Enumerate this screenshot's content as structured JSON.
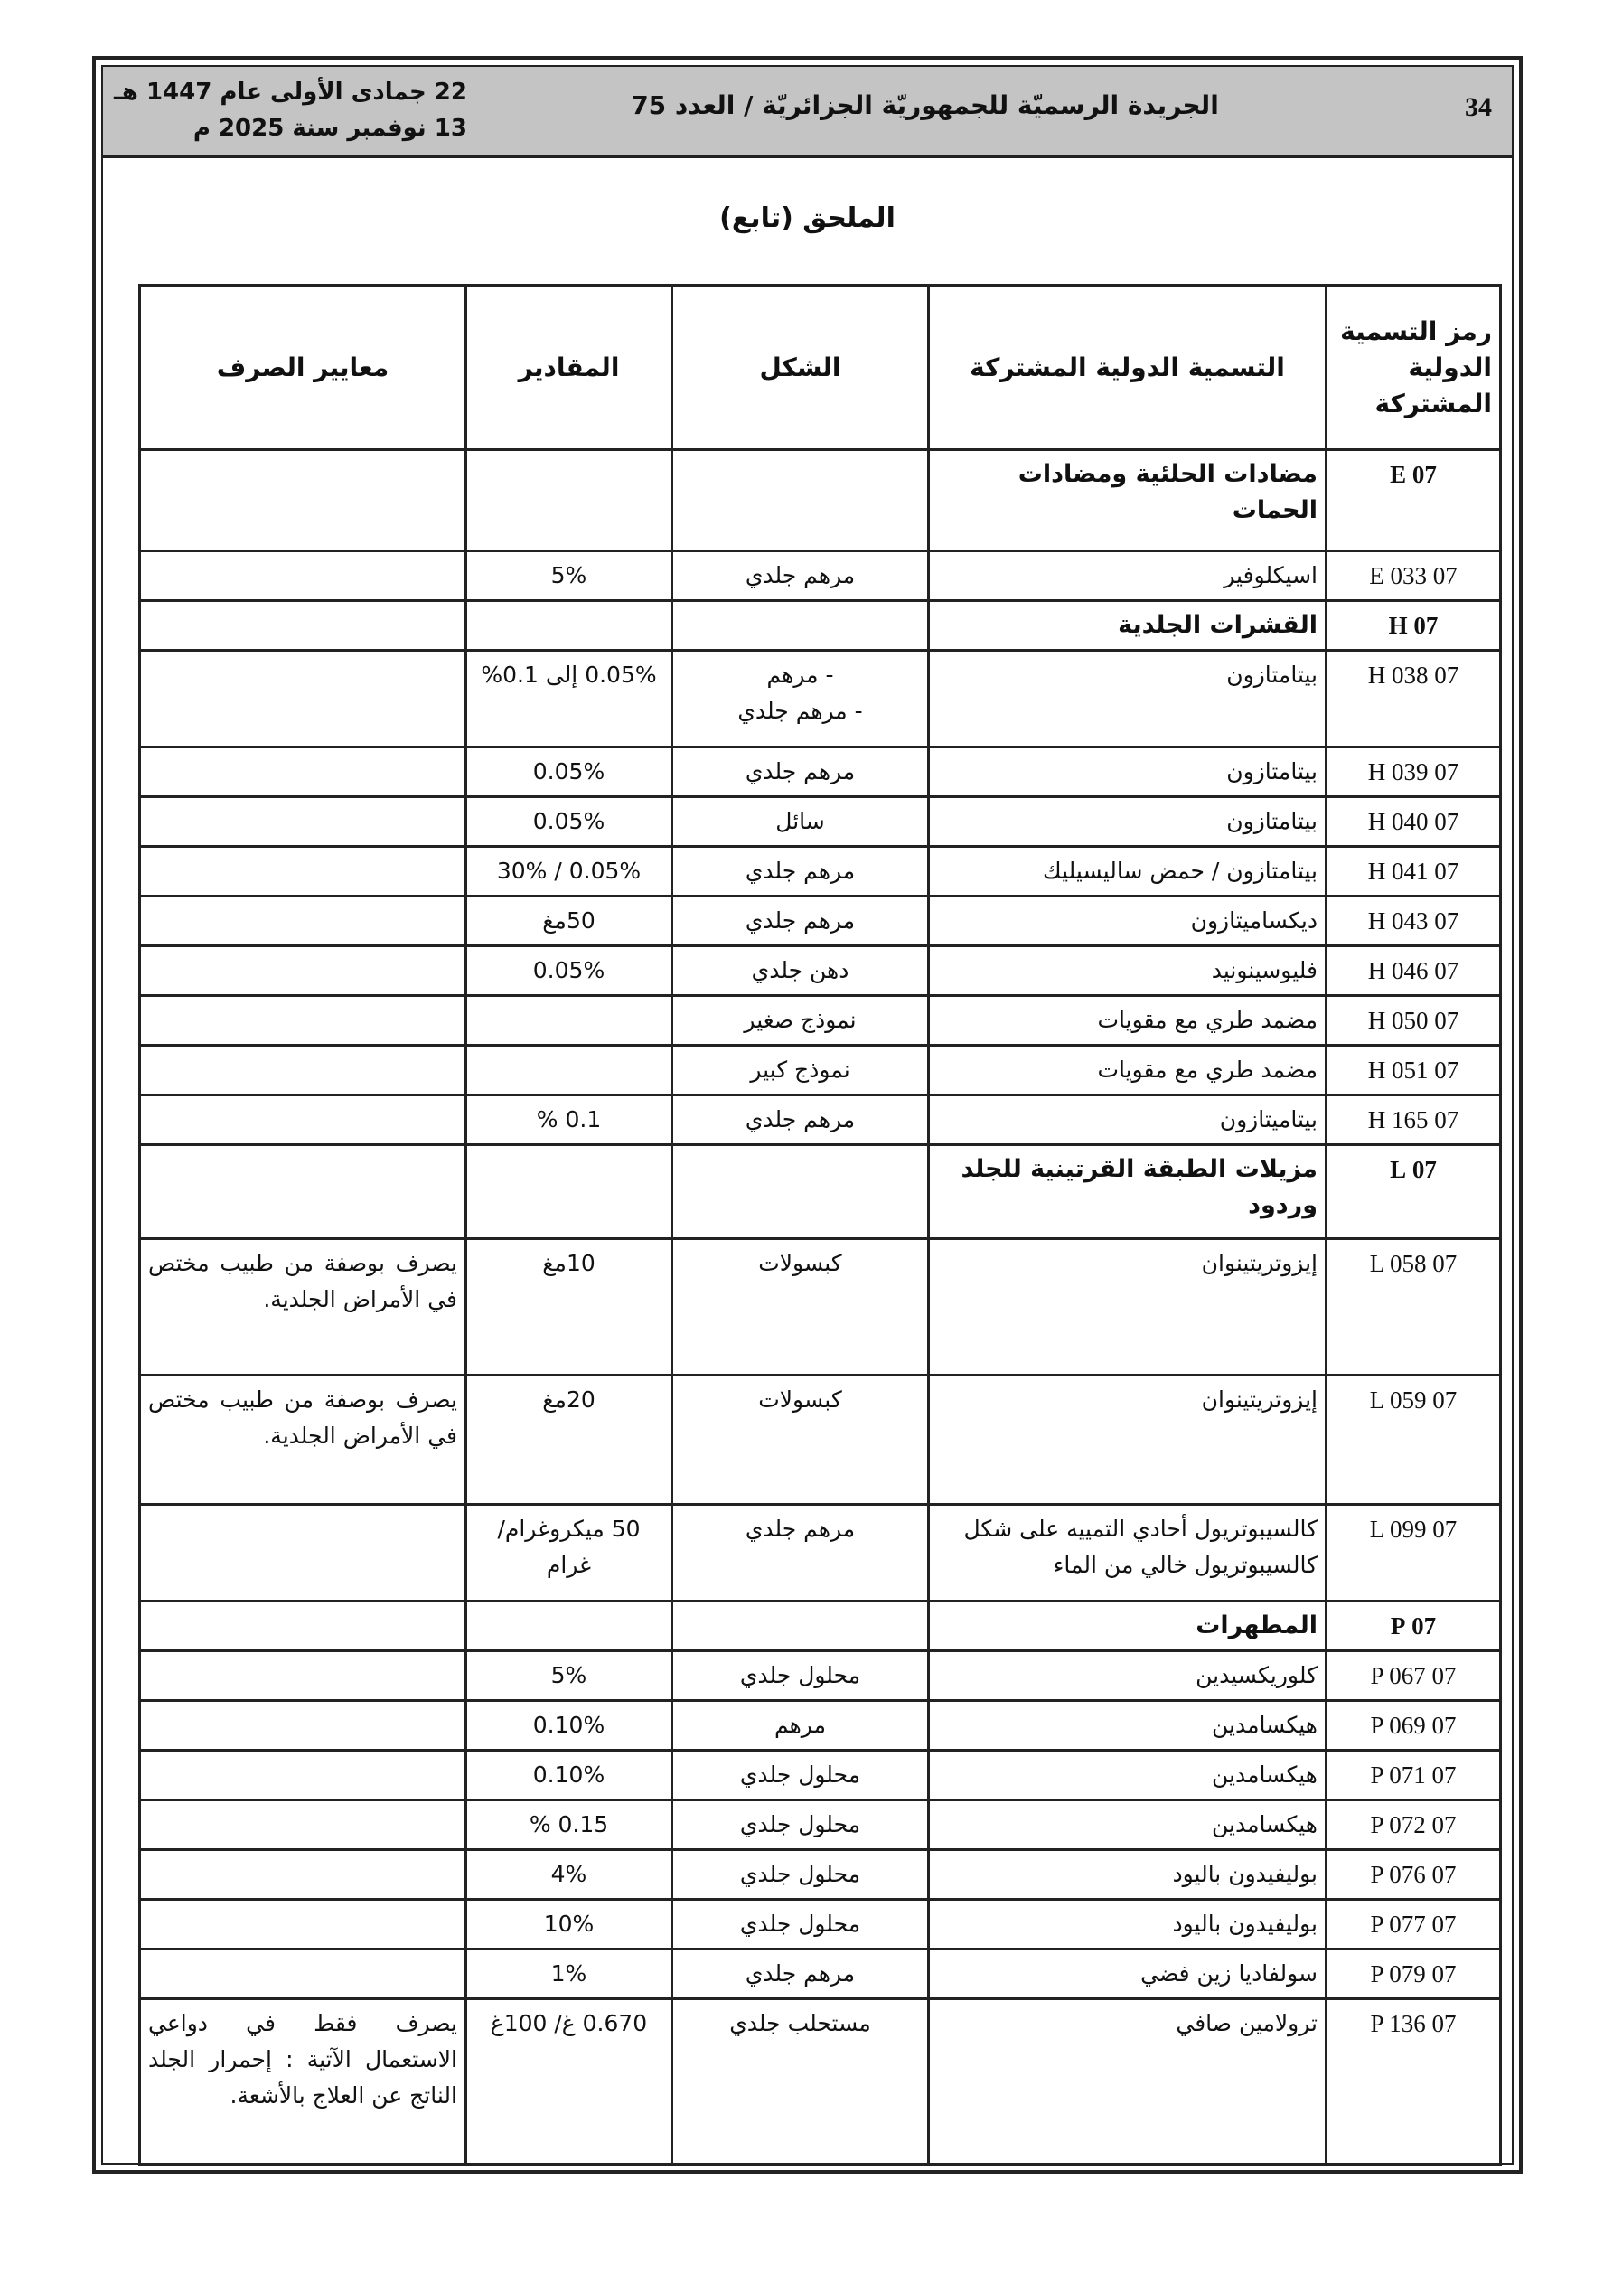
{
  "header": {
    "page_number": "34",
    "gazette_title": "الجريدة الرسميّة للجمهوريّة الجزائريّة / العدد 75",
    "date_hijri": "22 جمادى الأولى عام 1447 هـ",
    "date_gregorian": "13 نوفمبر سنة 2025 م"
  },
  "annex_title": "الملحق (تابع)",
  "table": {
    "columns": [
      "رمز التسمية الدولية المشتركة",
      "التسمية الدولية المشتركة",
      "الشكل",
      "المقادير",
      "معايير الصرف"
    ],
    "rows": [
      {
        "code": "07 E",
        "name": "مضادات الحلئية ومضادات الحمات",
        "form": "",
        "amount": "",
        "criteria": "",
        "section": true
      },
      {
        "code": "07 E 033",
        "name": "اسيكلوفير",
        "form": "مرهم جلدي",
        "amount": "5%",
        "criteria": ""
      },
      {
        "code": "07 H",
        "name": "القشرات الجلدية",
        "form": "",
        "amount": "",
        "criteria": "",
        "section": true
      },
      {
        "code": "07 H 038",
        "name": "بيتامتازون",
        "form": "- مرهم\n- مرهم جلدي",
        "amount": "0.05% إلى 0.1%",
        "criteria": ""
      },
      {
        "code": "07 H 039",
        "name": "بيتامتازون",
        "form": "مرهم جلدي",
        "amount": "0.05%",
        "criteria": ""
      },
      {
        "code": "07 H 040",
        "name": "بيتامتازون",
        "form": "سائل",
        "amount": "0.05%",
        "criteria": ""
      },
      {
        "code": "07 H 041",
        "name": "بيتامتازون / حمض ساليسيليك",
        "form": "مرهم جلدي",
        "amount": "0.05% / 30%",
        "criteria": ""
      },
      {
        "code": "07 H 043",
        "name": "ديكساميتازون",
        "form": "مرهم جلدي",
        "amount": "50مغ",
        "criteria": ""
      },
      {
        "code": "07 H 046",
        "name": "فليوسينونيد",
        "form": "دهن جلدي",
        "amount": "0.05%",
        "criteria": ""
      },
      {
        "code": "07 H 050",
        "name": "مضمد طري مع مقويات",
        "form": "نموذج صغير",
        "amount": "",
        "criteria": ""
      },
      {
        "code": "07 H 051",
        "name": "مضمد طري مع مقويات",
        "form": "نموذج كبير",
        "amount": "",
        "criteria": ""
      },
      {
        "code": "07 H 165",
        "name": "بيتاميتازون",
        "form": "مرهم جلدي",
        "amount": "0.1 %",
        "criteria": ""
      },
      {
        "code": "07 L",
        "name": "مزيلات الطبقة القرتينية للجلد وردود",
        "form": "",
        "amount": "",
        "criteria": "",
        "section": true
      },
      {
        "code": "07 L 058",
        "name": "إيزوتريتينوان",
        "form": "كبسولات",
        "amount": "10مغ",
        "criteria": "يصرف بوصفة من طبيب مختص في الأمراض الجلدية."
      },
      {
        "code": "07 L 059",
        "name": "إيزوتريتينوان",
        "form": "كبسولات",
        "amount": "20مغ",
        "criteria": "يصرف بوصفة من طبيب مختص في الأمراض الجلدية."
      },
      {
        "code": "07 L 099",
        "name": "كالسيبوتريول أحادي التمييه على شكل كالسيبوتريول خالي من الماء",
        "form": "مرهم جلدي",
        "amount": "50 ميكروغرام/ غرام",
        "criteria": ""
      },
      {
        "code": "07 P",
        "name": "المطهرات",
        "form": "",
        "amount": "",
        "criteria": "",
        "section": true
      },
      {
        "code": "07 P 067",
        "name": "كلوريكسيدين",
        "form": "محلول جلدي",
        "amount": "5%",
        "criteria": ""
      },
      {
        "code": "07 P 069",
        "name": "هيكسامدين",
        "form": "مرهم",
        "amount": "0.10%",
        "criteria": ""
      },
      {
        "code": "07 P 071",
        "name": "هيكسامدين",
        "form": "محلول جلدي",
        "amount": "0.10%",
        "criteria": ""
      },
      {
        "code": "07 P 072",
        "name": "هيكسامدين",
        "form": "محلول جلدي",
        "amount": "0.15 %",
        "criteria": ""
      },
      {
        "code": "07 P 076",
        "name": "بوليفيدون باليود",
        "form": "محلول جلدي",
        "amount": "4%",
        "criteria": ""
      },
      {
        "code": "07 P 077",
        "name": "بوليفيدون باليود",
        "form": "محلول جلدي",
        "amount": "10%",
        "criteria": ""
      },
      {
        "code": "07 P 079",
        "name": "سولفاديا زين فضي",
        "form": "مرهم جلدي",
        "amount": "1%",
        "criteria": ""
      },
      {
        "code": "07 P 136",
        "name": "ترولامين صافي",
        "form": "مستحلب جلدي",
        "amount": "0.670 غ/ 100غ",
        "criteria": "يصرف فقط في دواعي الاستعمال الآتية : إحمرار الجلد الناتج عن العلاج بالأشعة."
      }
    ]
  }
}
